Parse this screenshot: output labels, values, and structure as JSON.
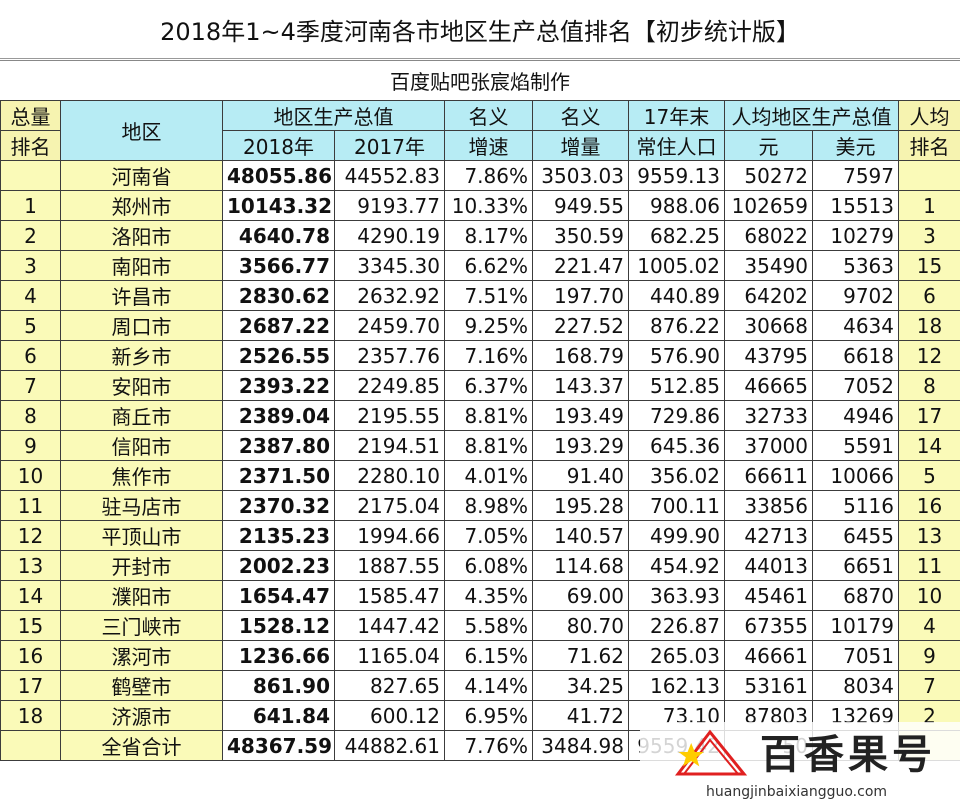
{
  "title": "2018年1~4季度河南各市地区生产总值排名【初步统计版",
  "title_bracket_end": "】",
  "subtitle": "百度贴吧张宸焰制作",
  "headers": {
    "rank_top": "总量",
    "rank_bottom": "排名",
    "region": "地区",
    "gdp": "地区生产总值",
    "y2018": "2018年",
    "y2017": "2017年",
    "growth_top": "名义",
    "growth_bottom": "增速",
    "increase_top": "名义",
    "increase_bottom": "增量",
    "pop_top": "17年末",
    "pop_bottom": "常住人口",
    "percap": "人均地区生产总值",
    "yuan": "元",
    "usd": "美元",
    "prank_top": "人均",
    "prank_bottom": "排名"
  },
  "rows": [
    {
      "rank": "",
      "region": "河南省",
      "y2018": "48055.86",
      "y2017": "44552.83",
      "growth": "7.86%",
      "increase": "3503.03",
      "pop": "9559.13",
      "yuan": "50272",
      "usd": "7597",
      "prank": ""
    },
    {
      "rank": "1",
      "region": "郑州市",
      "y2018": "10143.32",
      "y2017": "9193.77",
      "growth": "10.33%",
      "increase": "949.55",
      "pop": "988.06",
      "yuan": "102659",
      "usd": "15513",
      "prank": "1"
    },
    {
      "rank": "2",
      "region": "洛阳市",
      "y2018": "4640.78",
      "y2017": "4290.19",
      "growth": "8.17%",
      "increase": "350.59",
      "pop": "682.25",
      "yuan": "68022",
      "usd": "10279",
      "prank": "3"
    },
    {
      "rank": "3",
      "region": "南阳市",
      "y2018": "3566.77",
      "y2017": "3345.30",
      "growth": "6.62%",
      "increase": "221.47",
      "pop": "1005.02",
      "yuan": "35490",
      "usd": "5363",
      "prank": "15"
    },
    {
      "rank": "4",
      "region": "许昌市",
      "y2018": "2830.62",
      "y2017": "2632.92",
      "growth": "7.51%",
      "increase": "197.70",
      "pop": "440.89",
      "yuan": "64202",
      "usd": "9702",
      "prank": "6"
    },
    {
      "rank": "5",
      "region": "周口市",
      "y2018": "2687.22",
      "y2017": "2459.70",
      "growth": "9.25%",
      "increase": "227.52",
      "pop": "876.22",
      "yuan": "30668",
      "usd": "4634",
      "prank": "18"
    },
    {
      "rank": "6",
      "region": "新乡市",
      "y2018": "2526.55",
      "y2017": "2357.76",
      "growth": "7.16%",
      "increase": "168.79",
      "pop": "576.90",
      "yuan": "43795",
      "usd": "6618",
      "prank": "12"
    },
    {
      "rank": "7",
      "region": "安阳市",
      "y2018": "2393.22",
      "y2017": "2249.85",
      "growth": "6.37%",
      "increase": "143.37",
      "pop": "512.85",
      "yuan": "46665",
      "usd": "7052",
      "prank": "8"
    },
    {
      "rank": "8",
      "region": "商丘市",
      "y2018": "2389.04",
      "y2017": "2195.55",
      "growth": "8.81%",
      "increase": "193.49",
      "pop": "729.86",
      "yuan": "32733",
      "usd": "4946",
      "prank": "17"
    },
    {
      "rank": "9",
      "region": "信阳市",
      "y2018": "2387.80",
      "y2017": "2194.51",
      "growth": "8.81%",
      "increase": "193.29",
      "pop": "645.36",
      "yuan": "37000",
      "usd": "5591",
      "prank": "14"
    },
    {
      "rank": "10",
      "region": "焦作市",
      "y2018": "2371.50",
      "y2017": "2280.10",
      "growth": "4.01%",
      "increase": "91.40",
      "pop": "356.02",
      "yuan": "66611",
      "usd": "10066",
      "prank": "5"
    },
    {
      "rank": "11",
      "region": "驻马店市",
      "y2018": "2370.32",
      "y2017": "2175.04",
      "growth": "8.98%",
      "increase": "195.28",
      "pop": "700.11",
      "yuan": "33856",
      "usd": "5116",
      "prank": "16"
    },
    {
      "rank": "12",
      "region": "平顶山市",
      "y2018": "2135.23",
      "y2017": "1994.66",
      "growth": "7.05%",
      "increase": "140.57",
      "pop": "499.90",
      "yuan": "42713",
      "usd": "6455",
      "prank": "13"
    },
    {
      "rank": "13",
      "region": "开封市",
      "y2018": "2002.23",
      "y2017": "1887.55",
      "growth": "6.08%",
      "increase": "114.68",
      "pop": "454.92",
      "yuan": "44013",
      "usd": "6651",
      "prank": "11"
    },
    {
      "rank": "14",
      "region": "濮阳市",
      "y2018": "1654.47",
      "y2017": "1585.47",
      "growth": "4.35%",
      "increase": "69.00",
      "pop": "363.93",
      "yuan": "45461",
      "usd": "6870",
      "prank": "10"
    },
    {
      "rank": "15",
      "region": "三门峡市",
      "y2018": "1528.12",
      "y2017": "1447.42",
      "growth": "5.58%",
      "increase": "80.70",
      "pop": "226.87",
      "yuan": "67355",
      "usd": "10179",
      "prank": "4"
    },
    {
      "rank": "16",
      "region": "漯河市",
      "y2018": "1236.66",
      "y2017": "1165.04",
      "growth": "6.15%",
      "increase": "71.62",
      "pop": "265.03",
      "yuan": "46661",
      "usd": "7051",
      "prank": "9"
    },
    {
      "rank": "17",
      "region": "鹤壁市",
      "y2018": "861.90",
      "y2017": "827.65",
      "growth": "4.14%",
      "increase": "34.25",
      "pop": "162.13",
      "yuan": "53161",
      "usd": "8034",
      "prank": "7"
    },
    {
      "rank": "18",
      "region": "济源市",
      "y2018": "641.84",
      "y2017": "600.12",
      "growth": "6.95%",
      "increase": "41.72",
      "pop": "73.10",
      "yuan": "87803",
      "usd": "13269",
      "prank": "2"
    },
    {
      "rank": "",
      "region": "全省合计",
      "y2018": "48367.59",
      "y2017": "44882.61",
      "growth": "7.76%",
      "increase": "3484.98",
      "pop": "9559.42",
      "yuan": "50",
      "usd": "",
      "prank": ""
    }
  ],
  "watermark": {
    "brand": "百香果号",
    "url": "huangjinbaixiangguo.com",
    "logo_color": "#e02020"
  }
}
